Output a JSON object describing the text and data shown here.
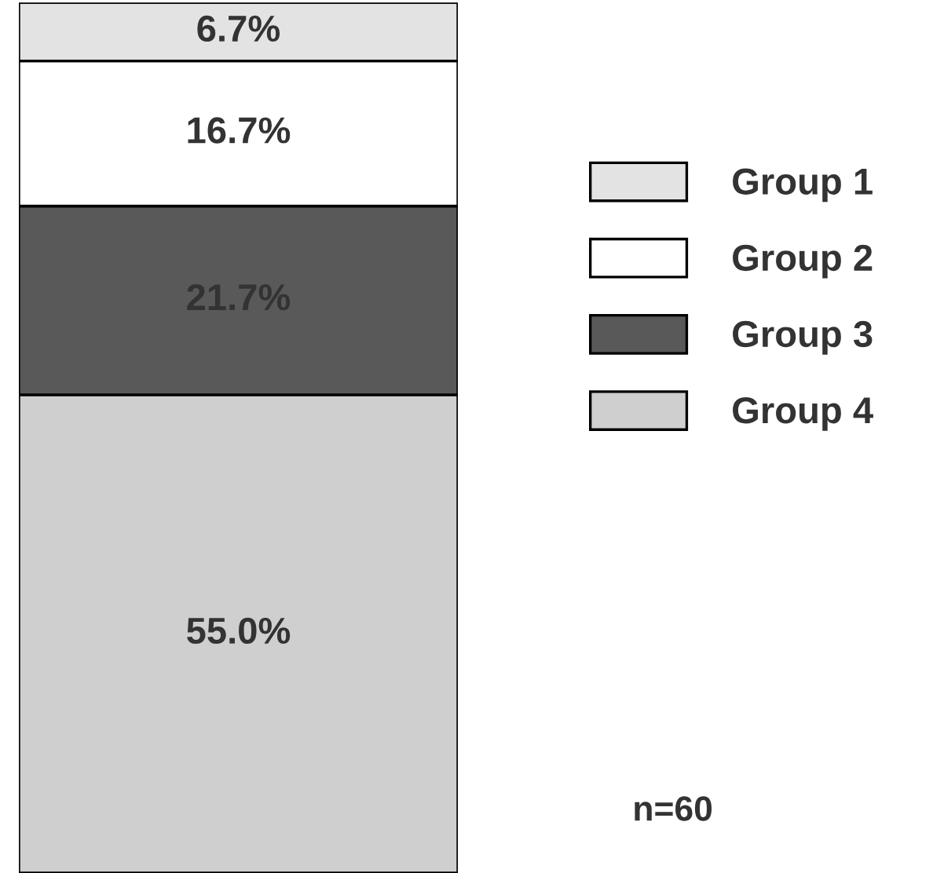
{
  "chart_data": {
    "type": "bar",
    "stacked": true,
    "categories": [
      null
    ],
    "series": [
      {
        "name": "Group 4",
        "color": "#cfcfcf",
        "values": [
          55.0
        ],
        "value_labels": [
          "55.0%"
        ]
      },
      {
        "name": "Group 3",
        "color": "#595959",
        "values": [
          21.7
        ],
        "value_labels": [
          "21.7%"
        ]
      },
      {
        "name": "Group 2",
        "color": "#ffffff",
        "values": [
          16.7
        ],
        "value_labels": [
          "16.7%"
        ]
      },
      {
        "name": "Group 1",
        "color": "#e3e3e3",
        "values": [
          6.7
        ],
        "value_labels": [
          "6.7%"
        ]
      }
    ],
    "legend": "right",
    "annotations": [
      "n=60"
    ]
  }
}
